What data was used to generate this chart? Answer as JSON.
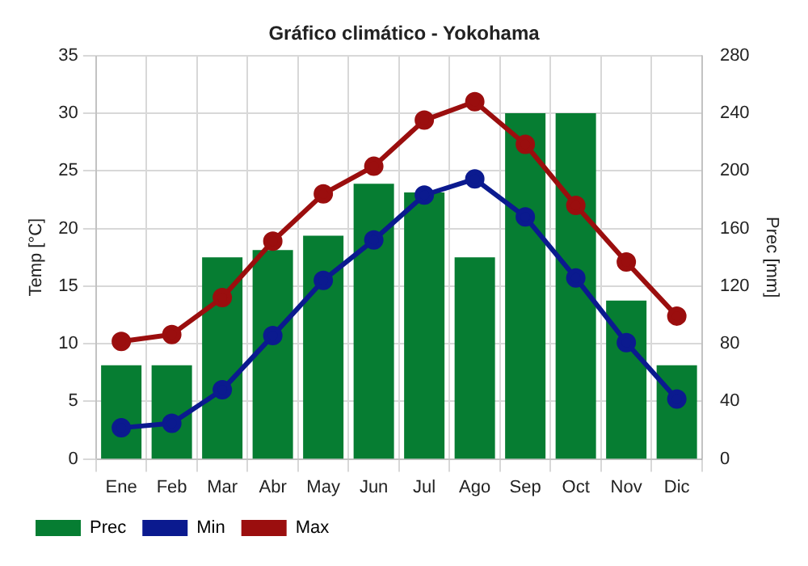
{
  "chart_data": {
    "type": "bar",
    "title": "Gráfico climático - Yokohama",
    "ylabel": "Temp [°C]",
    "y2label": "Prec [mm]",
    "categories": [
      "Ene",
      "Feb",
      "Mar",
      "Abr",
      "May",
      "Jun",
      "Jul",
      "Ago",
      "Sep",
      "Oct",
      "Nov",
      "Dic"
    ],
    "series": [
      {
        "name": "Prec",
        "axis": "y2",
        "color": "#067d32",
        "values": [
          65,
          65,
          140,
          145,
          155,
          191,
          185,
          140,
          240,
          240,
          110,
          65
        ]
      },
      {
        "name": "Min",
        "type": "line",
        "color": "#0b1a8f",
        "values": [
          2.7,
          3.1,
          6.0,
          10.7,
          15.5,
          19.0,
          22.9,
          24.3,
          21.0,
          15.7,
          10.1,
          5.2
        ]
      },
      {
        "name": "Max",
        "type": "line",
        "color": "#9b0e0e",
        "values": [
          10.2,
          10.8,
          14.0,
          18.9,
          23.0,
          25.4,
          29.4,
          31.0,
          27.3,
          22.0,
          17.1,
          12.4
        ]
      }
    ],
    "ylim": [
      0,
      35
    ],
    "yticks": [
      0,
      5,
      10,
      15,
      20,
      25,
      30,
      35
    ],
    "y2lim": [
      0,
      280
    ],
    "y2ticks": [
      0,
      40,
      80,
      120,
      160,
      200,
      240,
      280
    ],
    "grid": true,
    "legend": "bottom",
    "marker": "circle",
    "line_style": "solid"
  }
}
